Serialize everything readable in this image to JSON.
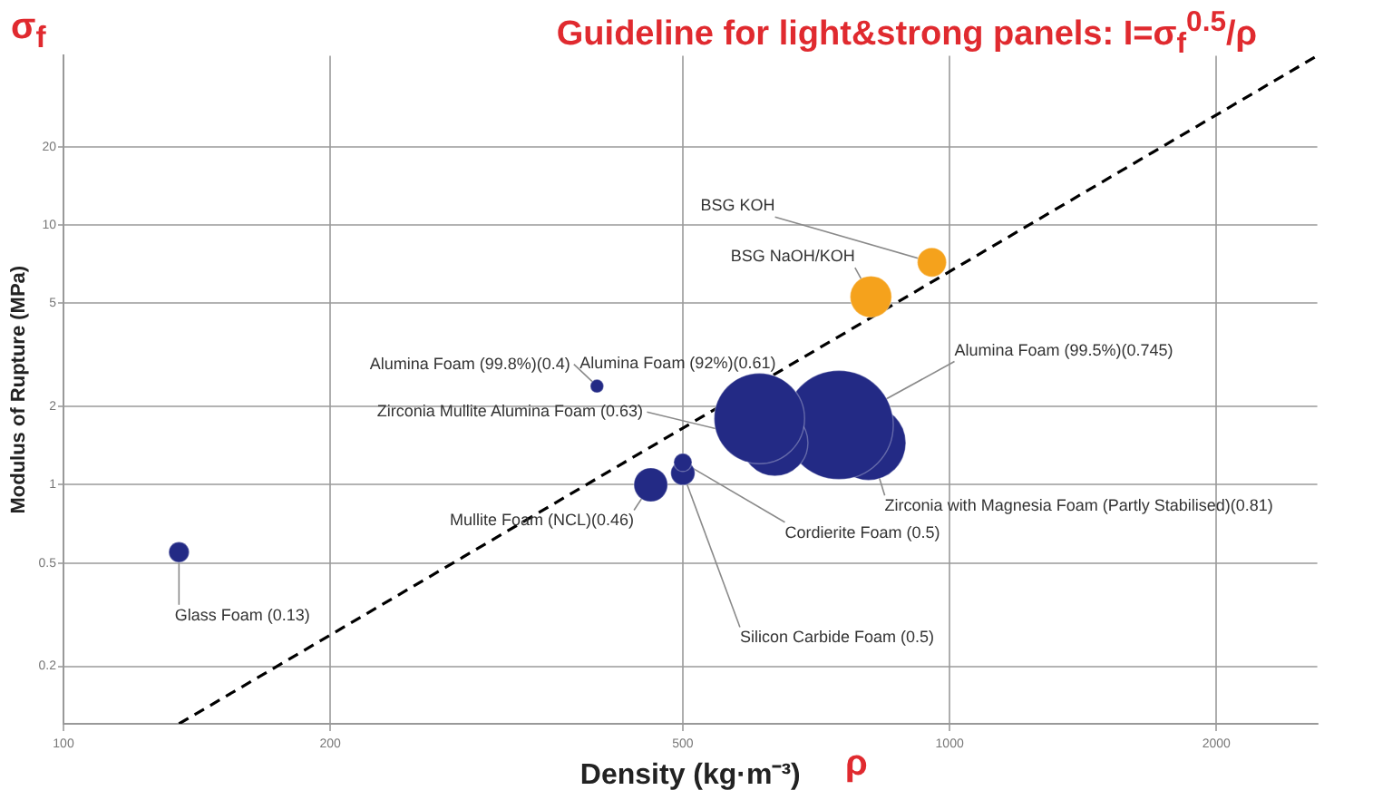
{
  "chart_data": {
    "type": "bubble",
    "title": "Guideline for light&strong panels: I=σ$_{f}$$^{0.5}$/ρ",
    "xlabel": "Density (kg·m⁻³)",
    "ylabel": "Modulus of Rupture (MPa)",
    "annotations": [
      "σ$_{f}$",
      "ρ"
    ],
    "log": "xy",
    "grid": true,
    "legend": false,
    "xlim": [
      100,
      2600
    ],
    "ylim": [
      0.12,
      45
    ],
    "xticks": [
      100,
      200,
      500,
      1000,
      2000
    ],
    "yticks": [
      0.2,
      0.5,
      1,
      2,
      5,
      10,
      20
    ],
    "series": [
      {
        "name": "Glass Foam (0.13)",
        "color": "#232a85",
        "x": [
          135
        ],
        "values": [
          0.55
        ],
        "sizes": [
          0.035
        ]
      },
      {
        "name": "Alumina Foam (99.8%)(0.4)",
        "color": "#232a85",
        "x": [
          400
        ],
        "values": [
          2.4
        ],
        "sizes": [
          0.015
        ]
      },
      {
        "name": "Mullite Foam (NCL)(0.46)",
        "color": "#232a85",
        "x": [
          460
        ],
        "values": [
          1.0
        ],
        "sizes": [
          0.096
        ]
      },
      {
        "name": "Cordierite Foam (0.5)",
        "color": "#232a85",
        "x": [
          500
        ],
        "values": [
          1.22
        ],
        "sizes": [
          0.028
        ]
      },
      {
        "name": "Silicon Carbide Foam (0.5)",
        "color": "#232a85",
        "x": [
          500
        ],
        "values": [
          1.11
        ],
        "sizes": [
          0.049
        ]
      },
      {
        "name": "Alumina Foam (92%)(0.61)",
        "color": "#232a85",
        "x": [
          610
        ],
        "values": [
          1.8
        ],
        "sizes": [
          0.69
        ]
      },
      {
        "name": "Zirconia Mullite Alumina Foam (0.63)",
        "color": "#232a85",
        "x": [
          635
        ],
        "values": [
          1.45
        ],
        "sizes": [
          0.37
        ]
      },
      {
        "name": "Alumina Foam (99.5%)(0.745)",
        "color": "#232a85",
        "x": [
          750
        ],
        "values": [
          1.7
        ],
        "sizes": [
          1
        ]
      },
      {
        "name": "Zirconia with Magnesia Foam (Partly Stabilised)(0.81)",
        "color": "#232a85",
        "x": [
          810
        ],
        "values": [
          1.45
        ],
        "sizes": [
          0.47
        ]
      },
      {
        "name": "BSG NaOH/KOH",
        "color": "#f5a21c",
        "x": [
          815
        ],
        "values": [
          5.3
        ],
        "sizes": [
          0.145
        ]
      },
      {
        "name": "BSG KOH",
        "color": "#f5a21c",
        "x": [
          955
        ],
        "values": [
          7.2
        ],
        "sizes": [
          0.071
        ]
      },
      {
        "type": "line",
        "color": "#000000",
        "line_style": "dashed",
        "x": [
          135,
          2600
        ],
        "values": [
          0.12,
          45
        ]
      }
    ]
  }
}
